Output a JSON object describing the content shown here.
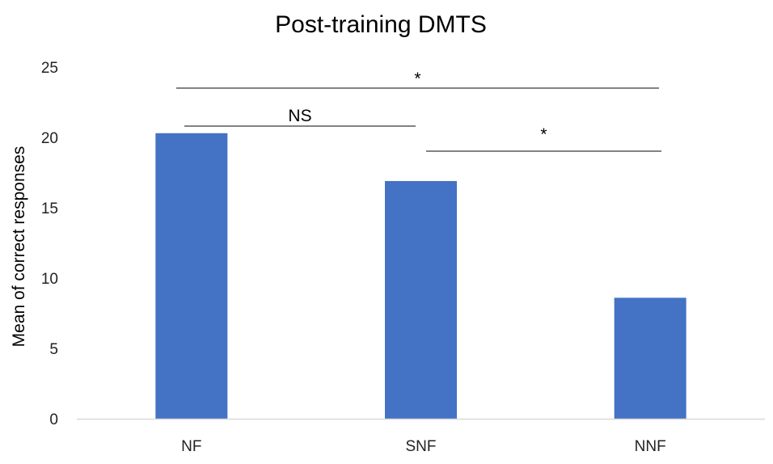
{
  "chart_data": {
    "type": "bar",
    "title": "Post-training DMTS",
    "xlabel": "",
    "ylabel": "Mean of correct responses",
    "categories": [
      "NF",
      "SNF",
      "NNF"
    ],
    "values": [
      20.3,
      16.9,
      8.6
    ],
    "ylim": [
      0,
      25
    ],
    "yticks": [
      "0",
      "5",
      "10",
      "15",
      "20",
      "25"
    ],
    "grid": false,
    "legend": "none",
    "bar_color": "#4472C4",
    "annotations": [
      {
        "label": "*",
        "from": "NF",
        "to": "NNF"
      },
      {
        "label": "NS",
        "from": "NF",
        "to": "SNF"
      },
      {
        "label": "*",
        "from": "SNF",
        "to": "NNF"
      }
    ]
  }
}
